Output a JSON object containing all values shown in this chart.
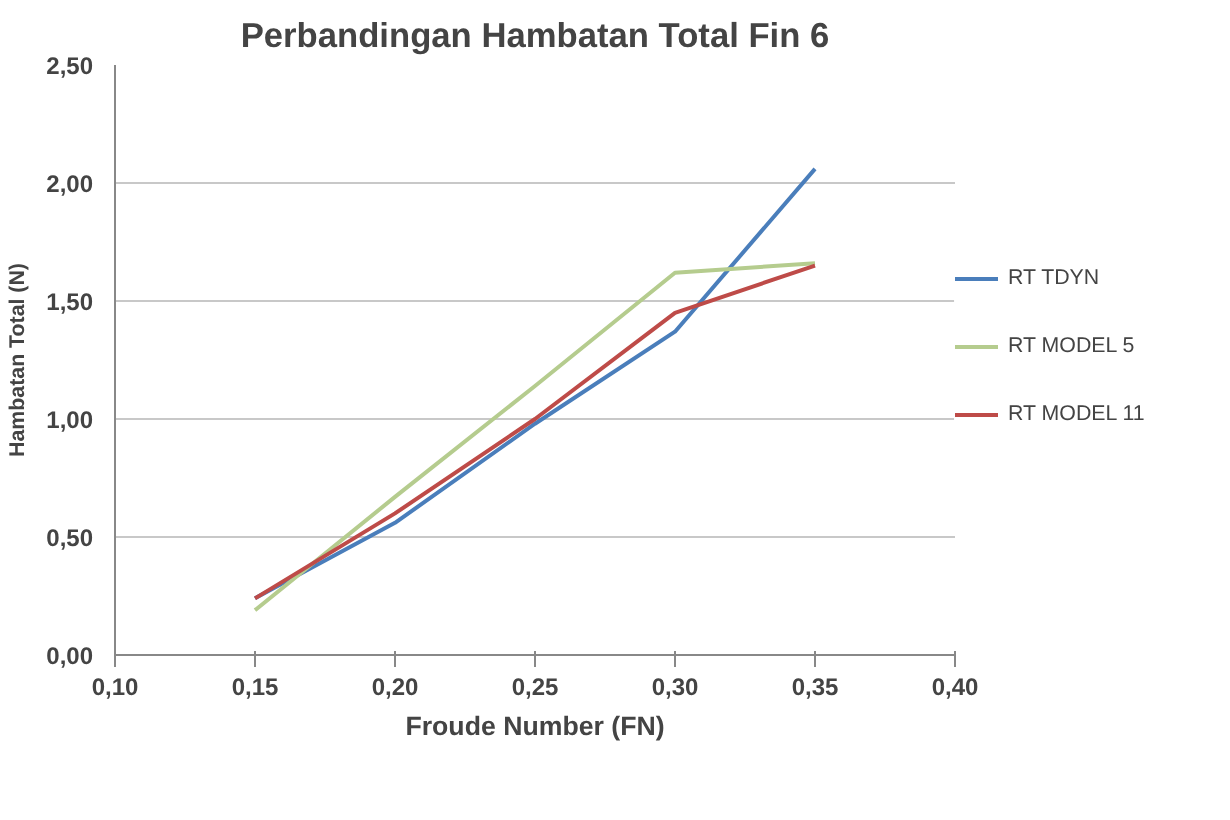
{
  "chart_data": {
    "type": "line",
    "title": "Perbandingan Hambatan Total Fin 6",
    "xlabel": "Froude Number (FN)",
    "ylabel": "Hambatan Total (N)",
    "x": [
      0.15,
      0.2,
      0.25,
      0.3,
      0.35
    ],
    "series": [
      {
        "name": "RT TDYN",
        "color": "#4a7ebb",
        "values": [
          0.24,
          0.56,
          0.98,
          1.37,
          2.06
        ]
      },
      {
        "name": "RT MODEL 5",
        "color": "#b5cc8e",
        "values": [
          0.19,
          0.67,
          1.14,
          1.62,
          1.66
        ]
      },
      {
        "name": "RT MODEL 11",
        "color": "#be4b48",
        "values": [
          0.24,
          0.6,
          1.0,
          1.45,
          1.65
        ]
      }
    ],
    "xlim": [
      0.1,
      0.4
    ],
    "ylim": [
      0,
      2.5
    ],
    "xticks": [
      {
        "value": 0.1,
        "label": "0,10"
      },
      {
        "value": 0.15,
        "label": "0,15"
      },
      {
        "value": 0.2,
        "label": "0,20"
      },
      {
        "value": 0.25,
        "label": "0,25"
      },
      {
        "value": 0.3,
        "label": "0,30"
      },
      {
        "value": 0.35,
        "label": "0,35"
      },
      {
        "value": 0.4,
        "label": "0,40"
      }
    ],
    "yticks": [
      {
        "value": 0,
        "label": "0,00"
      },
      {
        "value": 0.5,
        "label": "0,50"
      },
      {
        "value": 1.0,
        "label": "1,00"
      },
      {
        "value": 1.5,
        "label": "1,50"
      },
      {
        "value": 2.0,
        "label": "2,00"
      },
      {
        "value": 2.5,
        "label": "2,50"
      }
    ],
    "grid": "y",
    "legend": "right",
    "marker": "none",
    "line_style": "solid"
  }
}
